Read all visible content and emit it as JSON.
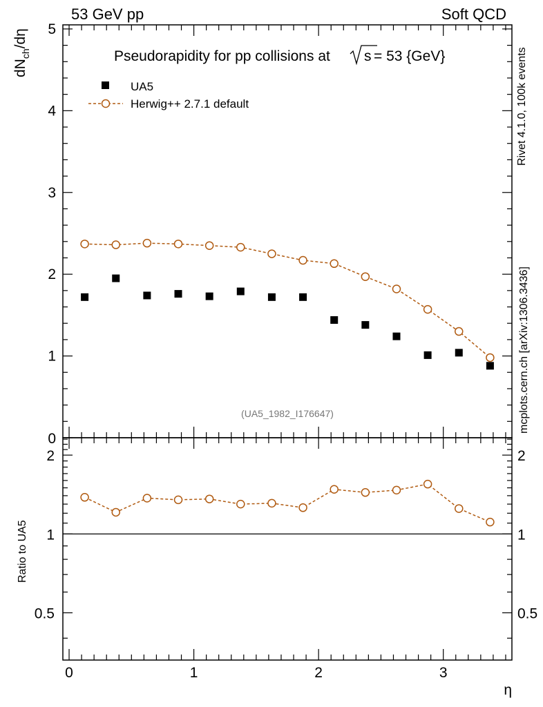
{
  "header": {
    "left": "53 GeV pp",
    "right": "Soft QCD"
  },
  "side_texts": {
    "rivet": "Rivet 4.1.0,  100k events",
    "mcplots": "mcplots.cern.ch [arXiv:1306.3436]"
  },
  "watermark": "(UA5_1982_I176647)",
  "colors": {
    "data": "#000000",
    "mc": "#b05a10",
    "axis": "#000000",
    "grey_text": "#808080"
  },
  "chart_data": [
    {
      "type": "scatter",
      "panel": "main",
      "title_prefix": "Pseudorapidity for pp collisions at",
      "title_sqrt": "s",
      "title_suffix": " = 53 {GeV}",
      "ylabel_main": "dN",
      "ylabel_sub": "ch",
      "ylabel_tail": "/dη",
      "xlim": [
        -0.05,
        3.55
      ],
      "ylim": [
        0,
        5.05
      ],
      "yticks": [
        "1",
        "2",
        "3",
        "4",
        "5"
      ],
      "ytick_zero": "0",
      "legend_position": "top-left",
      "series": [
        {
          "name": "UA5",
          "marker": "filled-square",
          "x": [
            0.125,
            0.375,
            0.625,
            0.875,
            1.125,
            1.375,
            1.625,
            1.875,
            2.125,
            2.375,
            2.625,
            2.875,
            3.125,
            3.375
          ],
          "y": [
            1.72,
            1.95,
            1.74,
            1.76,
            1.73,
            1.79,
            1.72,
            1.72,
            1.44,
            1.38,
            1.24,
            1.01,
            1.04,
            0.88
          ]
        },
        {
          "name": "Herwig++ 2.7.1 default",
          "marker": "open-circle",
          "line": "dashed",
          "x": [
            0.125,
            0.375,
            0.625,
            0.875,
            1.125,
            1.375,
            1.625,
            1.875,
            2.125,
            2.375,
            2.625,
            2.875,
            3.125,
            3.375
          ],
          "y": [
            2.37,
            2.36,
            2.38,
            2.37,
            2.35,
            2.33,
            2.25,
            2.17,
            2.13,
            1.97,
            1.82,
            1.57,
            1.3,
            0.98
          ]
        }
      ]
    },
    {
      "type": "line",
      "panel": "ratio",
      "ylabel": "Ratio to UA5",
      "xlabel": "η",
      "xlim": [
        -0.05,
        3.55
      ],
      "ylim": [
        0.33,
        2.33
      ],
      "yticks": [
        "0.5",
        "1",
        "2"
      ],
      "xticks": [
        "0",
        "1",
        "2",
        "3"
      ],
      "reference_line": 1,
      "series": [
        {
          "name": "Herwig++ 2.7.1 default",
          "x": [
            0.125,
            0.375,
            0.625,
            0.875,
            1.125,
            1.375,
            1.625,
            1.875,
            2.125,
            2.375,
            2.625,
            2.875,
            3.125,
            3.375
          ],
          "y": [
            1.38,
            1.21,
            1.37,
            1.35,
            1.36,
            1.3,
            1.31,
            1.26,
            1.48,
            1.44,
            1.47,
            1.55,
            1.25,
            1.11
          ]
        }
      ]
    }
  ]
}
